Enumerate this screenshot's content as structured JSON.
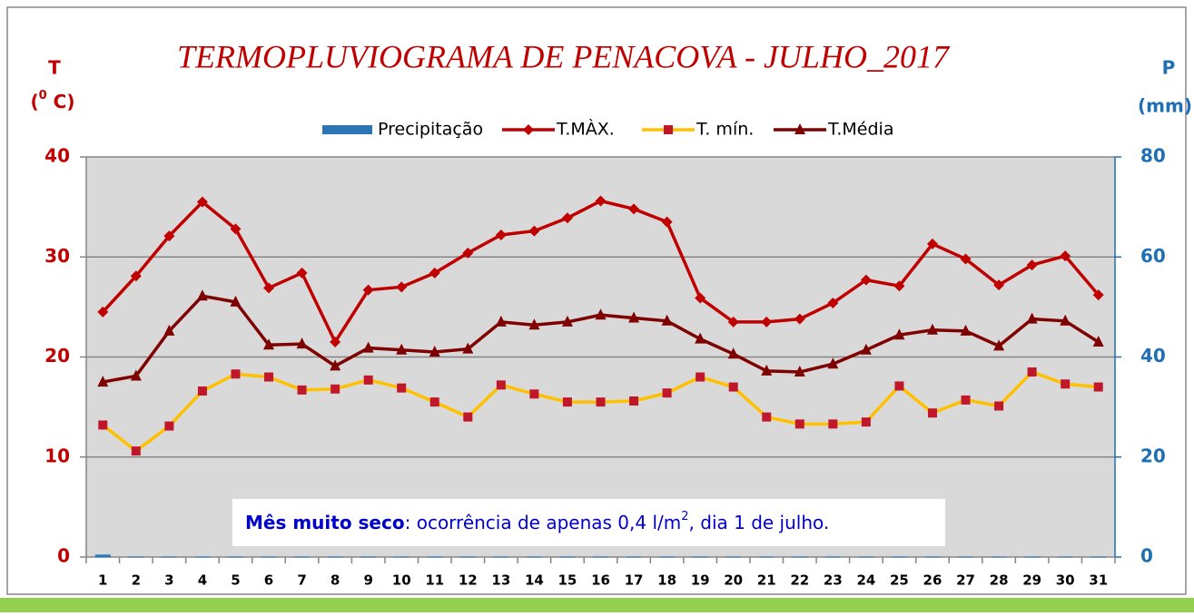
{
  "chart_data": {
    "type": "line",
    "title": "TERMOPLUVIOGRAMA DE PENACOVA - JULHO_2017",
    "y_label": "T",
    "y_unit": [
      "(",
      "0",
      " C)"
    ],
    "y2_label": "P",
    "y2_unit": "(mm)",
    "annotation": {
      "bold": "Mês muito seco",
      "text": ": ocorrência de apenas 0,4 l/m",
      "sup": "2",
      "end": ", dia 1 de julho."
    },
    "categories": [
      "1",
      "2",
      "3",
      "4",
      "5",
      "6",
      "7",
      "8",
      "9",
      "10",
      "11",
      "12",
      "13",
      "14",
      "15",
      "16",
      "17",
      "18",
      "19",
      "20",
      "21",
      "22",
      "23",
      "24",
      "25",
      "26",
      "27",
      "28",
      "29",
      "30",
      "31"
    ],
    "ylim": [
      0,
      40
    ],
    "yticks": [
      0,
      10,
      20,
      30,
      40
    ],
    "y2lim": [
      0,
      80
    ],
    "y2ticks": [
      0,
      20,
      40,
      60,
      80
    ],
    "grid": true,
    "series": [
      {
        "name": "Precipitação",
        "color": "#2e75b6",
        "axis": "y2",
        "kind": "bar",
        "values": [
          0.4,
          0,
          0,
          0,
          0,
          0,
          0,
          0,
          0,
          0,
          0,
          0,
          0,
          0,
          0,
          0,
          0,
          0,
          0,
          0,
          0,
          0,
          0,
          0,
          0,
          0,
          0,
          0,
          0,
          0,
          0
        ]
      },
      {
        "name": "T.MÀX.",
        "color": "#c00000",
        "marker": "diamond",
        "marker_color": "#c00000",
        "values": [
          24.5,
          28.1,
          32.1,
          35.5,
          32.8,
          26.9,
          28.4,
          21.5,
          26.7,
          27.0,
          28.4,
          30.4,
          32.2,
          32.6,
          33.9,
          35.6,
          34.8,
          33.5,
          25.9,
          23.5,
          23.5,
          23.8,
          25.4,
          27.7,
          27.1,
          31.3,
          29.8,
          27.2,
          29.2,
          30.1,
          26.2
        ]
      },
      {
        "name": "T. mín.",
        "color": "#ffc000",
        "marker": "square",
        "marker_color": "#c0182a",
        "values": [
          13.2,
          10.6,
          13.1,
          16.6,
          18.3,
          18.0,
          16.7,
          16.8,
          17.7,
          16.9,
          15.5,
          14.0,
          17.2,
          16.3,
          15.5,
          15.5,
          15.6,
          16.4,
          18.0,
          17.0,
          14.0,
          13.3,
          13.3,
          13.5,
          17.1,
          14.4,
          15.7,
          15.1,
          18.5,
          17.3,
          17.0
        ]
      },
      {
        "name": "T.Média",
        "color": "#7f0000",
        "marker": "triangle",
        "marker_color": "#7f0000",
        "values": [
          17.5,
          18.1,
          22.6,
          26.1,
          25.5,
          21.2,
          21.3,
          19.1,
          20.9,
          20.7,
          20.5,
          20.8,
          23.5,
          23.2,
          23.5,
          24.2,
          23.9,
          23.6,
          21.8,
          20.3,
          18.6,
          18.5,
          19.3,
          20.7,
          22.2,
          22.7,
          22.6,
          21.1,
          23.8,
          23.6,
          21.5
        ]
      }
    ]
  }
}
